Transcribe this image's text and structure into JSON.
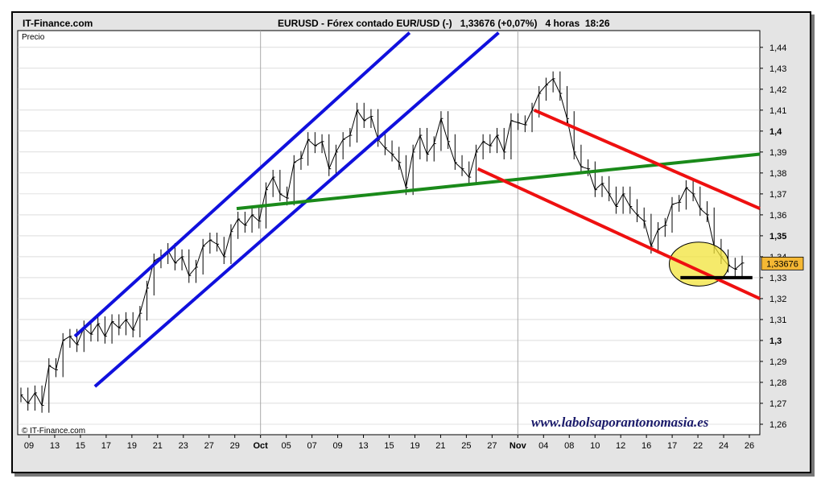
{
  "header": {
    "brand": "IT-Finance.com",
    "instrument": "EURUSD - Fórex contado EUR/USD (-)",
    "price_change": "1,33676 (+0,07%)",
    "timeframe": "4 horas",
    "time": "18:26"
  },
  "watermark": "© IT-Finance.com",
  "site_url": "www.labolsaporantonomasia.es",
  "chart_data": {
    "type": "line",
    "ylabel": "Precio",
    "ylim": [
      1.255,
      1.448
    ],
    "y_ticks": [
      "1,44",
      "1,43",
      "1,42",
      "1,41",
      "1,4",
      "1,39",
      "1,38",
      "1,37",
      "1,36",
      "1,35",
      "1,34",
      "1,33",
      "1,32",
      "1,31",
      "1,3",
      "1,29",
      "1,28",
      "1,27",
      "1,26"
    ],
    "bold_ticks": [
      "1,4",
      "1,35",
      "1,3"
    ],
    "x_labels": [
      "09",
      "13",
      "15",
      "17",
      "19",
      "21",
      "23",
      "27",
      "29",
      "Oct",
      "05",
      "07",
      "09",
      "13",
      "15",
      "19",
      "21",
      "25",
      "27",
      "Nov",
      "04",
      "08",
      "10",
      "12",
      "16",
      "17",
      "22",
      "24",
      "26"
    ],
    "bold_x_labels": [
      "Oct",
      "Nov"
    ],
    "grid": true,
    "last_price": "1,33676",
    "last_price_value": 1.33676,
    "price_series": [
      1.274,
      1.27,
      1.275,
      1.269,
      1.288,
      1.286,
      1.3,
      1.302,
      1.298,
      1.306,
      1.303,
      1.308,
      1.302,
      1.309,
      1.306,
      1.31,
      1.305,
      1.313,
      1.325,
      1.338,
      1.34,
      1.343,
      1.337,
      1.34,
      1.331,
      1.335,
      1.345,
      1.348,
      1.346,
      1.34,
      1.352,
      1.358,
      1.355,
      1.36,
      1.357,
      1.372,
      1.378,
      1.37,
      1.368,
      1.385,
      1.387,
      1.396,
      1.393,
      1.395,
      1.382,
      1.39,
      1.396,
      1.398,
      1.41,
      1.405,
      1.407,
      1.396,
      1.392,
      1.389,
      1.385,
      1.373,
      1.39,
      1.398,
      1.389,
      1.394,
      1.406,
      1.395,
      1.385,
      1.382,
      1.378,
      1.39,
      1.395,
      1.393,
      1.398,
      1.39,
      1.405,
      1.404,
      1.403,
      1.41,
      1.418,
      1.422,
      1.425,
      1.418,
      1.406,
      1.39,
      1.383,
      1.382,
      1.372,
      1.375,
      1.37,
      1.364,
      1.37,
      1.364,
      1.36,
      1.357,
      1.345,
      1.353,
      1.355,
      1.365,
      1.366,
      1.373,
      1.37,
      1.363,
      1.36,
      1.345,
      1.34,
      1.336,
      1.334,
      1.337
    ],
    "trendlines": [
      {
        "color": "#1010dd",
        "points": [
          [
            0.077,
            1.302
          ],
          [
            0.528,
            1.447
          ]
        ]
      },
      {
        "color": "#1010dd",
        "points": [
          [
            0.104,
            1.278
          ],
          [
            0.648,
            1.447
          ]
        ]
      },
      {
        "color": "#1a8a1a",
        "points": [
          [
            0.295,
            1.363
          ],
          [
            1.0,
            1.389
          ]
        ]
      },
      {
        "color": "#ee1010",
        "points": [
          [
            0.696,
            1.41
          ],
          [
            1.0,
            1.363
          ]
        ]
      },
      {
        "color": "#ee1010",
        "points": [
          [
            0.62,
            1.382
          ],
          [
            1.0,
            1.32
          ]
        ]
      },
      {
        "color": "#000000",
        "points": [
          [
            0.893,
            1.33
          ],
          [
            0.99,
            1.33
          ]
        ]
      }
    ],
    "highlight": {
      "color": "#f2e33a",
      "center": [
        0.918,
        1.3365
      ],
      "rx": 0.04,
      "ry": 0.0105
    }
  },
  "colors": {
    "panel_bg": "#e4e4e4",
    "plot_bg": "#ffffff",
    "grid": "#c8c8c8",
    "price": "#000000",
    "label_box": "#f5b834"
  }
}
